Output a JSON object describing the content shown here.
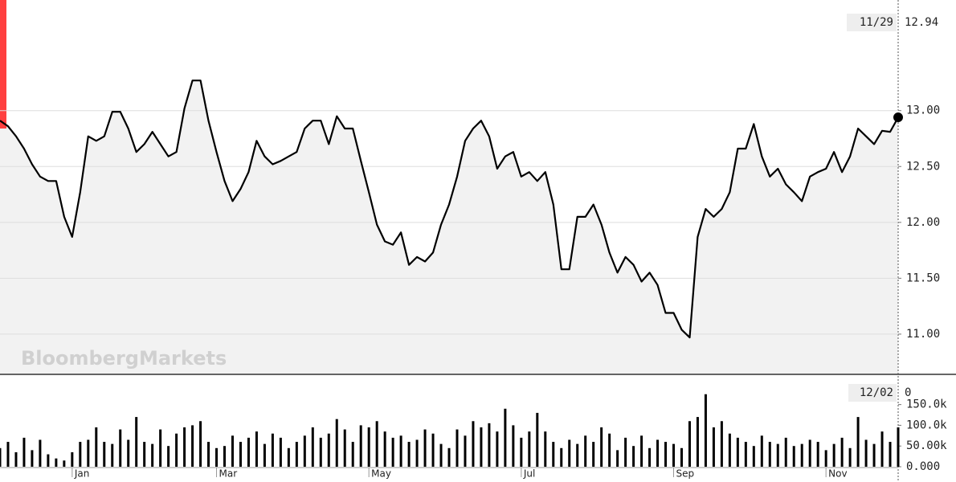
{
  "chart_data": [
    {
      "type": "line",
      "color": "#000000",
      "fill": "#f2f2f2",
      "grid": true,
      "watermark": "BloombergMarkets",
      "crosshair": {
        "x_label": "11/29",
        "value": 12.94
      },
      "ylim": [
        10.64,
        13.99
      ],
      "yticks": [
        {
          "value": 11,
          "label": "11.00"
        },
        {
          "value": 11.5,
          "label": "11.50"
        },
        {
          "value": 12,
          "label": "12.00"
        },
        {
          "value": 12.5,
          "label": "12.50"
        },
        {
          "value": 13,
          "label": "13.00"
        }
      ],
      "values": [
        12.91,
        12.86,
        12.77,
        12.66,
        12.52,
        12.41,
        12.37,
        12.37,
        12.05,
        11.87,
        12.27,
        12.77,
        12.73,
        12.77,
        12.99,
        12.99,
        12.84,
        12.63,
        12.7,
        12.81,
        12.7,
        12.59,
        12.63,
        13.02,
        13.27,
        13.27,
        12.91,
        12.63,
        12.37,
        12.19,
        12.3,
        12.45,
        12.73,
        12.59,
        12.52,
        12.55,
        12.59,
        12.63,
        12.84,
        12.91,
        12.91,
        12.7,
        12.95,
        12.84,
        12.84,
        12.55,
        12.27,
        11.98,
        11.83,
        11.8,
        11.91,
        11.62,
        11.69,
        11.65,
        11.73,
        11.98,
        12.16,
        12.41,
        12.73,
        12.84,
        12.91,
        12.77,
        12.48,
        12.59,
        12.63,
        12.41,
        12.45,
        12.37,
        12.45,
        12.16,
        11.58,
        11.58,
        12.05,
        12.05,
        12.16,
        11.98,
        11.73,
        11.55,
        11.69,
        11.62,
        11.47,
        11.55,
        11.44,
        11.19,
        11.19,
        11.04,
        10.97,
        11.87,
        12.12,
        12.05,
        12.12,
        12.27,
        12.66,
        12.66,
        12.88,
        12.59,
        12.41,
        12.48,
        12.34,
        12.27,
        12.19,
        12.41,
        12.45,
        12.48,
        12.63,
        12.45,
        12.59,
        12.84,
        12.77,
        12.7,
        12.82,
        12.81,
        12.94
      ]
    },
    {
      "type": "bar",
      "color": "#000000",
      "grid": false,
      "crosshair": {
        "x_label": "12/02",
        "value": 0
      },
      "ylim": [
        0,
        221000
      ],
      "yticks": [
        {
          "value": 0,
          "label": "0.000"
        },
        {
          "value": 50000,
          "label": "50.00k"
        },
        {
          "value": 100000,
          "label": "100.0k"
        },
        {
          "value": 150000,
          "label": "150.0k"
        }
      ],
      "categories": [
        null,
        null,
        null,
        null,
        null,
        null,
        null,
        null,
        null,
        "Jan",
        null,
        null,
        null,
        null,
        null,
        null,
        null,
        null,
        null,
        null,
        null,
        null,
        null,
        null,
        null,
        null,
        null,
        "Mar",
        null,
        null,
        null,
        null,
        null,
        null,
        null,
        null,
        null,
        null,
        null,
        null,
        null,
        null,
        null,
        null,
        null,
        null,
        "May",
        null,
        null,
        null,
        null,
        null,
        null,
        null,
        null,
        null,
        null,
        null,
        null,
        null,
        null,
        null,
        null,
        null,
        null,
        "Jul",
        null,
        null,
        null,
        null,
        null,
        null,
        null,
        null,
        null,
        null,
        null,
        null,
        null,
        null,
        null,
        null,
        null,
        null,
        "Sep",
        null,
        null,
        null,
        null,
        null,
        null,
        null,
        null,
        null,
        null,
        null,
        null,
        null,
        null,
        null,
        null,
        null,
        null,
        "Nov",
        null,
        null,
        null,
        null,
        null,
        null,
        null,
        null,
        null
      ],
      "values": [
        45000,
        60000,
        35000,
        70000,
        40000,
        65000,
        30000,
        20000,
        15000,
        35000,
        60000,
        65000,
        95000,
        60000,
        55000,
        90000,
        65000,
        120000,
        60000,
        55000,
        90000,
        50000,
        80000,
        95000,
        100000,
        110000,
        60000,
        45000,
        50000,
        75000,
        60000,
        70000,
        85000,
        55000,
        80000,
        70000,
        45000,
        60000,
        75000,
        95000,
        70000,
        80000,
        115000,
        90000,
        60000,
        100000,
        95000,
        110000,
        85000,
        70000,
        75000,
        60000,
        65000,
        90000,
        80000,
        55000,
        45000,
        90000,
        75000,
        110000,
        95000,
        105000,
        85000,
        140000,
        100000,
        70000,
        85000,
        130000,
        85000,
        60000,
        45000,
        65000,
        55000,
        75000,
        60000,
        95000,
        80000,
        40000,
        70000,
        50000,
        75000,
        45000,
        65000,
        60000,
        55000,
        45000,
        110000,
        120000,
        175000,
        95000,
        110000,
        80000,
        70000,
        60000,
        50000,
        75000,
        60000,
        55000,
        70000,
        50000,
        55000,
        65000,
        60000,
        40000,
        55000,
        70000,
        45000,
        120000,
        65000,
        55000,
        85000,
        60000,
        95000
      ]
    }
  ]
}
